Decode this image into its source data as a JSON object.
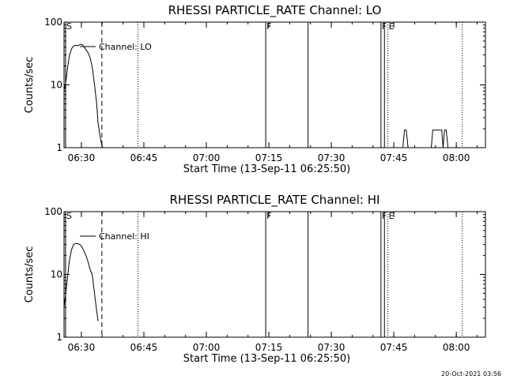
{
  "footer": {
    "timestamp": "20-Oct-2021 03:56"
  },
  "chart_data": [
    {
      "type": "line",
      "title": "RHESSI PARTICLE_RATE Channel: LO",
      "xlabel": "Start Time (13-Sep-11 06:25:50)",
      "ylabel": "Counts/sec",
      "xlim": [
        "06:25:50",
        "08:07:00"
      ],
      "ylim": [
        1,
        100
      ],
      "yscale": "log",
      "xticks": [
        "06:30",
        "06:45",
        "07:00",
        "07:15",
        "07:30",
        "07:45",
        "08:00"
      ],
      "yticks": [
        "1",
        "10",
        "100"
      ],
      "series": [
        {
          "name": "Channel: LO",
          "color": "#000000",
          "x": [
            "06:25:50",
            "06:26:20",
            "06:26:45",
            "06:27:10",
            "06:27:40",
            "06:28:10",
            "06:28:40",
            "06:29:10",
            "06:29:40",
            "06:30:10",
            "06:30:40",
            "06:31:10",
            "06:31:40",
            "06:32:10",
            "06:32:40",
            "06:33:10",
            "06:33:40",
            "06:34:00",
            "06:34:30",
            "06:35:00"
          ],
          "y": [
            8,
            12,
            20,
            30,
            38,
            42,
            43,
            42,
            44,
            44,
            40,
            36,
            32,
            26,
            18,
            10,
            5,
            2.5,
            1.5,
            1
          ]
        },
        {
          "name": "",
          "color": "#000000",
          "x": [
            "07:47:10",
            "07:47:35",
            "07:48:00",
            "07:48:25"
          ],
          "y": [
            1,
            1.9,
            1.9,
            1
          ]
        },
        {
          "name": "",
          "color": "#000000",
          "x": [
            "07:54:00",
            "07:54:20",
            "07:56:30",
            "07:56:50",
            "07:57:10",
            "07:57:35",
            "07:58:00"
          ],
          "y": [
            1,
            1.9,
            1.9,
            1,
            1.9,
            1.9,
            1
          ]
        }
      ],
      "markers": [
        {
          "time": "06:26:12",
          "label": "S",
          "style": "solid"
        },
        {
          "time": "06:34:55",
          "label": "",
          "style": "dashed"
        },
        {
          "time": "06:43:35",
          "label": "",
          "style": "dotted"
        },
        {
          "time": "07:14:15",
          "label": "F",
          "style": "solid"
        },
        {
          "time": "07:24:25",
          "label": "",
          "style": "solid"
        },
        {
          "time": "07:41:55",
          "label": "F",
          "style": "solid"
        },
        {
          "time": "07:42:45",
          "label": "",
          "style": "solid"
        },
        {
          "time": "07:43:35",
          "label": "E",
          "style": "dotted"
        },
        {
          "time": "08:01:25",
          "label": "",
          "style": "dotted"
        }
      ],
      "legend": {
        "label": "Channel: LO",
        "placement": "top-left"
      }
    },
    {
      "type": "line",
      "title": "RHESSI PARTICLE_RATE Channel: HI",
      "xlabel": "Start Time (13-Sep-11 06:25:50)",
      "ylabel": "Counts/sec",
      "xlim": [
        "06:25:50",
        "08:07:00"
      ],
      "ylim": [
        1,
        100
      ],
      "yscale": "log",
      "xticks": [
        "06:30",
        "06:45",
        "07:00",
        "07:15",
        "07:30",
        "07:45",
        "08:00"
      ],
      "yticks": [
        "1",
        "10",
        "100"
      ],
      "series": [
        {
          "name": "Channel: HI",
          "color": "#000000",
          "x": [
            "06:25:50",
            "06:26:15",
            "06:26:40",
            "06:27:05",
            "06:27:35",
            "06:28:05",
            "06:28:35",
            "06:29:05",
            "06:29:35",
            "06:30:05",
            "06:30:35",
            "06:31:05",
            "06:31:35",
            "06:32:05",
            "06:32:35",
            "06:33:00",
            "06:33:25",
            "06:33:50",
            "06:34:00"
          ],
          "y": [
            3,
            5,
            9,
            16,
            24,
            30,
            31,
            31,
            30,
            28,
            24,
            20,
            16,
            12,
            10,
            6,
            3.5,
            2.2,
            1.8
          ]
        }
      ],
      "markers": [
        {
          "time": "06:26:12",
          "label": "S",
          "style": "solid"
        },
        {
          "time": "06:34:55",
          "label": "",
          "style": "dashed"
        },
        {
          "time": "06:43:35",
          "label": "",
          "style": "dotted"
        },
        {
          "time": "07:14:15",
          "label": "F",
          "style": "solid"
        },
        {
          "time": "07:24:25",
          "label": "",
          "style": "solid"
        },
        {
          "time": "07:41:55",
          "label": "F",
          "style": "solid"
        },
        {
          "time": "07:42:45",
          "label": "",
          "style": "solid"
        },
        {
          "time": "07:43:35",
          "label": "E",
          "style": "dotted"
        },
        {
          "time": "08:01:25",
          "label": "",
          "style": "dotted"
        }
      ],
      "legend": {
        "label": "Channel: HI",
        "placement": "top-left"
      }
    }
  ]
}
